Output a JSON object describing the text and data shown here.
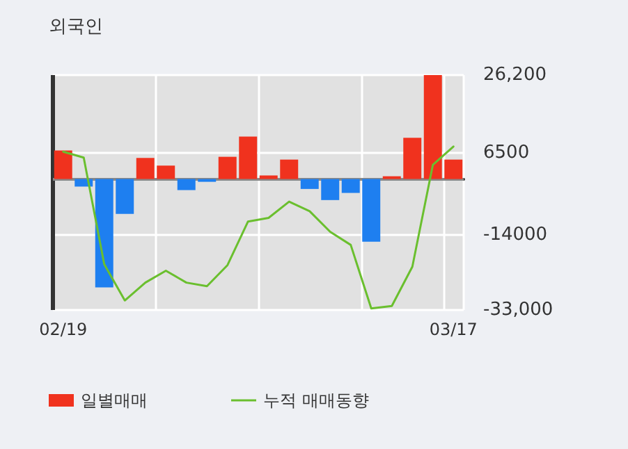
{
  "chart_data": {
    "type": "bar",
    "title": "외국인",
    "categories": [
      "02/19",
      null,
      null,
      null,
      null,
      null,
      null,
      null,
      null,
      null,
      null,
      null,
      null,
      null,
      null,
      null,
      null,
      null,
      null,
      "03/17"
    ],
    "series": [
      {
        "name": "일별매매",
        "colors": [
          "#f0321e",
          "#1e7ff0",
          "#1e7ff0",
          "#1e7ff0",
          "#f0321e",
          "#f0321e",
          "#1e7ff0",
          "#1e7ff0",
          "#f0321e",
          "#f0321e",
          "#f0321e",
          "#f0321e",
          "#1e7ff0",
          "#1e7ff0",
          "#1e7ff0",
          "#1e7ff0",
          "#f0321e",
          "#f0321e",
          "#f0321e",
          "#f0321e"
        ],
        "values": [
          7200,
          -1900,
          -27300,
          -8800,
          5300,
          3400,
          -2800,
          -700,
          5600,
          10700,
          900,
          4900,
          -2500,
          -5300,
          -3500,
          -15800,
          700,
          10400,
          26200,
          4900
        ]
      },
      {
        "name": "누적 매매동향",
        "type": "line",
        "color": "#6abf2e",
        "values": [
          6900,
          5400,
          -21500,
          -30600,
          -26100,
          -23100,
          -26100,
          -27000,
          -21700,
          -10700,
          -9800,
          -5700,
          -8100,
          -13300,
          -16600,
          -32600,
          -32000,
          -22100,
          3600,
          8200
        ]
      }
    ],
    "ylim": [
      -33000,
      26200
    ],
    "yticks": [
      {
        "value": 26200,
        "label": "26,200"
      },
      6500,
      -14000,
      {
        "value": -33000,
        "label": "-33,000"
      }
    ],
    "grid": true,
    "legend": "bottom",
    "marker": "none",
    "line_style": "solid"
  }
}
